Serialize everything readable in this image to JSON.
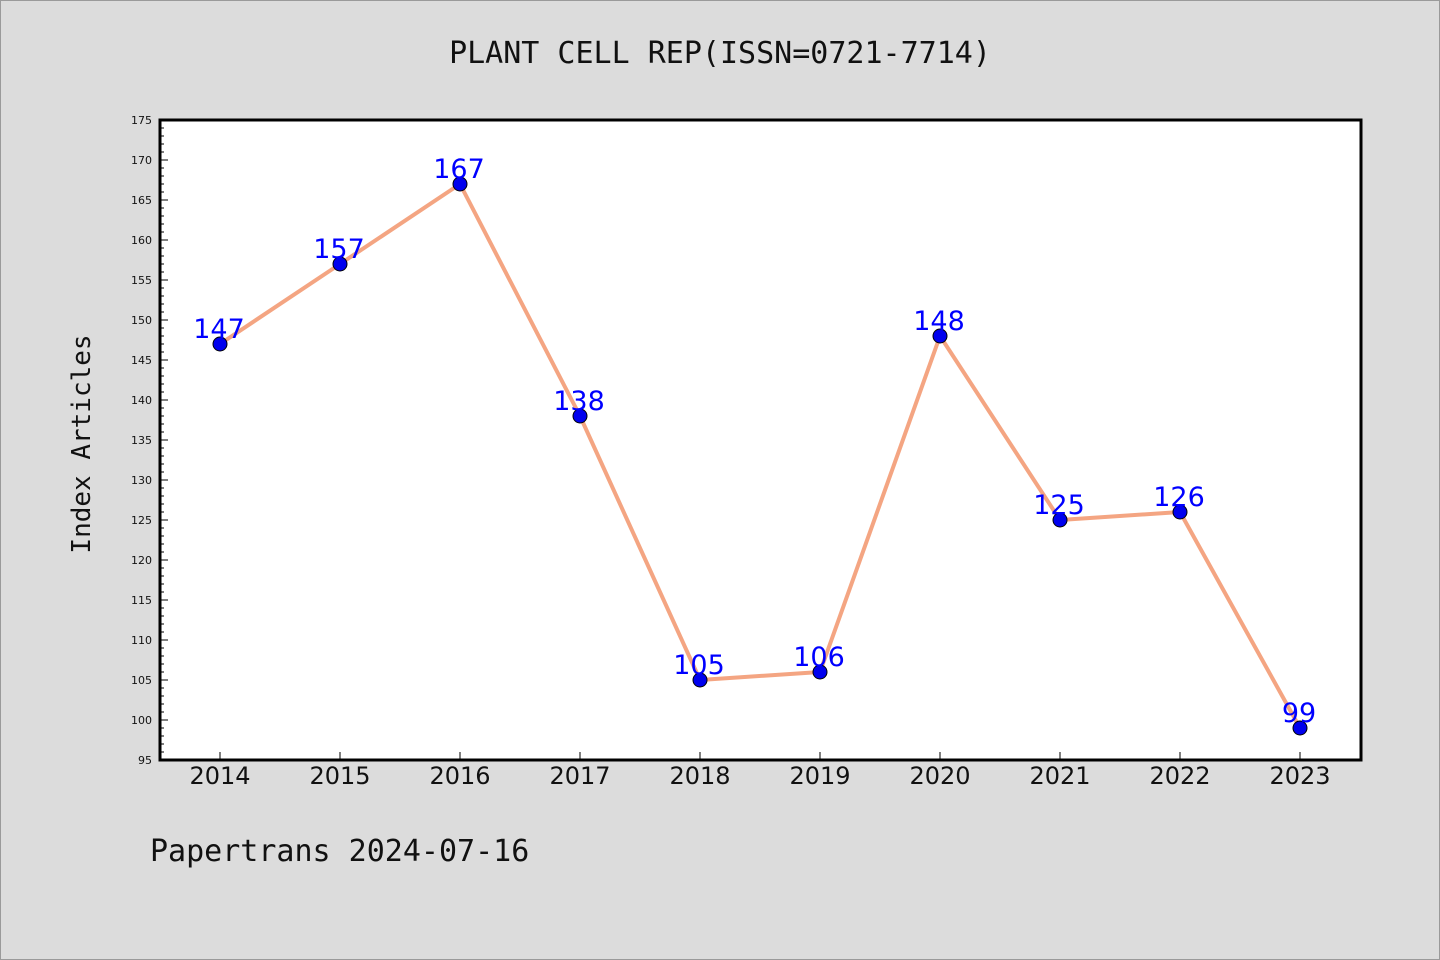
{
  "title": "PLANT CELL REP(ISSN=0721-7714)",
  "footer": "Papertrans 2024-07-16",
  "colors": {
    "line": "#f4a582",
    "marker": "#0000ee",
    "label": "#0000ff",
    "background": "#dcdcdc",
    "plot_area": "#ffffff"
  },
  "chart_data": {
    "type": "line",
    "title": "PLANT CELL REP(ISSN=0721-7714)",
    "xlabel": "",
    "ylabel": "Index Articles",
    "x": [
      "2014",
      "2015",
      "2016",
      "2017",
      "2018",
      "2019",
      "2020",
      "2021",
      "2022",
      "2023"
    ],
    "series": [
      {
        "values": [
          147,
          157,
          167,
          138,
          105,
          106,
          148,
          125,
          126,
          99
        ]
      }
    ],
    "data_labels": [
      "147",
      "157",
      "167",
      "138",
      "105",
      "106",
      "148",
      "125",
      "126",
      "99"
    ],
    "ylim": [
      95,
      175
    ],
    "yticks": [
      "95",
      "100",
      "105",
      "110",
      "115",
      "120",
      "125",
      "130",
      "135",
      "140",
      "145",
      "150",
      "155",
      "160",
      "165",
      "170",
      "175"
    ],
    "grid": false,
    "legend": "none"
  }
}
